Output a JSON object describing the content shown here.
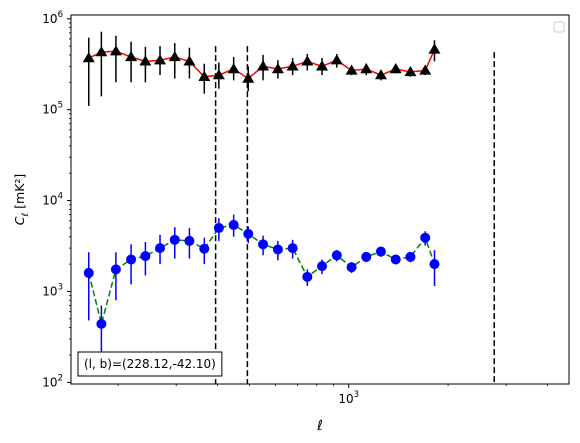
{
  "chart_data": {
    "type": "scatter",
    "xscale": "log",
    "yscale": "log",
    "xlim": [
      144,
      4650
    ],
    "ylim": [
      96,
      1100000
    ],
    "xlabel": "ℓ",
    "ylabel": "C_ℓ  [mK²]",
    "x_ticks": [
      {
        "value": 1000,
        "base": "10",
        "exp": "3"
      }
    ],
    "y_ticks": [
      {
        "value": 100,
        "base": "10",
        "exp": "2"
      },
      {
        "value": 1000,
        "base": "10",
        "exp": "3"
      },
      {
        "value": 10000,
        "base": "10",
        "exp": "4"
      },
      {
        "value": 100000,
        "base": "10",
        "exp": "5"
      },
      {
        "value": 1000000,
        "base": "10",
        "exp": "6"
      }
    ],
    "legend_position": "upper right (empty)",
    "series": [
      {
        "marker": "triangle",
        "color": "#000000",
        "line_color": "#ff0000",
        "line_style": "solid",
        "points": [
          {
            "x": 163,
            "y": 370000,
            "lo": 110000,
            "hi": 620000
          },
          {
            "x": 178,
            "y": 430000,
            "lo": 140000,
            "hi": 720000
          },
          {
            "x": 197,
            "y": 440000,
            "lo": 200000,
            "hi": 650000
          },
          {
            "x": 219,
            "y": 380000,
            "lo": 200000,
            "hi": 560000
          },
          {
            "x": 242,
            "y": 340000,
            "lo": 200000,
            "hi": 490000
          },
          {
            "x": 268,
            "y": 350000,
            "lo": 240000,
            "hi": 500000
          },
          {
            "x": 297,
            "y": 380000,
            "lo": 220000,
            "hi": 540000
          },
          {
            "x": 329,
            "y": 340000,
            "lo": 220000,
            "hi": 480000
          },
          {
            "x": 365,
            "y": 230000,
            "lo": 150000,
            "hi": 320000
          },
          {
            "x": 404,
            "y": 240000,
            "lo": 170000,
            "hi": 330000
          },
          {
            "x": 448,
            "y": 280000,
            "lo": 210000,
            "hi": 380000
          },
          {
            "x": 496,
            "y": 220000,
            "lo": 160000,
            "hi": 300000
          },
          {
            "x": 550,
            "y": 300000,
            "lo": 210000,
            "hi": 400000
          },
          {
            "x": 610,
            "y": 280000,
            "lo": 220000,
            "hi": 350000
          },
          {
            "x": 676,
            "y": 300000,
            "lo": 240000,
            "hi": 370000
          },
          {
            "x": 749,
            "y": 340000,
            "lo": 270000,
            "hi": 410000
          },
          {
            "x": 830,
            "y": 300000,
            "lo": 240000,
            "hi": 370000
          },
          {
            "x": 920,
            "y": 350000,
            "lo": 290000,
            "hi": 410000
          },
          {
            "x": 1020,
            "y": 270000,
            "lo": 240000,
            "hi": 300000
          },
          {
            "x": 1130,
            "y": 280000,
            "lo": 240000,
            "hi": 320000
          },
          {
            "x": 1252,
            "y": 240000,
            "lo": 210000,
            "hi": 270000
          },
          {
            "x": 1388,
            "y": 280000,
            "lo": 250000,
            "hi": 310000
          },
          {
            "x": 1538,
            "y": 260000,
            "lo": 230000,
            "hi": 290000
          },
          {
            "x": 1705,
            "y": 270000,
            "lo": 240000,
            "hi": 300000
          },
          {
            "x": 1819,
            "y": 460000,
            "lo": 340000,
            "hi": 580000
          }
        ]
      },
      {
        "marker": "circle",
        "color": "#0000ff",
        "line_color": "#008000",
        "line_style": "dashed",
        "points": [
          {
            "x": 163,
            "y": 1600,
            "lo": 480,
            "hi": 2700
          },
          {
            "x": 178,
            "y": 440,
            "lo": 180,
            "hi": 700
          },
          {
            "x": 197,
            "y": 1750,
            "lo": 800,
            "hi": 2700
          },
          {
            "x": 219,
            "y": 2250,
            "lo": 1200,
            "hi": 3300
          },
          {
            "x": 242,
            "y": 2450,
            "lo": 1500,
            "hi": 3500
          },
          {
            "x": 268,
            "y": 3000,
            "lo": 2000,
            "hi": 4200
          },
          {
            "x": 297,
            "y": 3700,
            "lo": 2300,
            "hi": 5100
          },
          {
            "x": 329,
            "y": 3600,
            "lo": 2300,
            "hi": 5000
          },
          {
            "x": 365,
            "y": 2950,
            "lo": 2000,
            "hi": 3900
          },
          {
            "x": 404,
            "y": 5000,
            "lo": 3600,
            "hi": 6400
          },
          {
            "x": 448,
            "y": 5400,
            "lo": 4000,
            "hi": 7000
          },
          {
            "x": 496,
            "y": 4300,
            "lo": 3400,
            "hi": 5200
          },
          {
            "x": 550,
            "y": 3300,
            "lo": 2500,
            "hi": 4100
          },
          {
            "x": 610,
            "y": 2900,
            "lo": 2200,
            "hi": 3600
          },
          {
            "x": 676,
            "y": 3000,
            "lo": 2300,
            "hi": 3700
          },
          {
            "x": 749,
            "y": 1450,
            "lo": 1150,
            "hi": 1750
          },
          {
            "x": 830,
            "y": 1900,
            "lo": 1550,
            "hi": 2250
          },
          {
            "x": 920,
            "y": 2500,
            "lo": 2150,
            "hi": 2850
          },
          {
            "x": 1020,
            "y": 1850,
            "lo": 1600,
            "hi": 2100
          },
          {
            "x": 1130,
            "y": 2400,
            "lo": 2100,
            "hi": 2700
          },
          {
            "x": 1252,
            "y": 2750,
            "lo": 2400,
            "hi": 3100
          },
          {
            "x": 1388,
            "y": 2250,
            "lo": 2000,
            "hi": 2500
          },
          {
            "x": 1538,
            "y": 2400,
            "lo": 2100,
            "hi": 2700
          },
          {
            "x": 1705,
            "y": 3900,
            "lo": 3200,
            "hi": 4600
          },
          {
            "x": 1819,
            "y": 2000,
            "lo": 1150,
            "hi": 2850
          }
        ]
      }
    ],
    "vlines": [
      {
        "x": 395,
        "y_top": 500000
      },
      {
        "x": 493,
        "y_top": 500000
      },
      {
        "x": 2760,
        "y_top": 430000
      }
    ],
    "annotation": "(l, b)=(228.12,-42.10)",
    "annotation_position": "lower left"
  }
}
